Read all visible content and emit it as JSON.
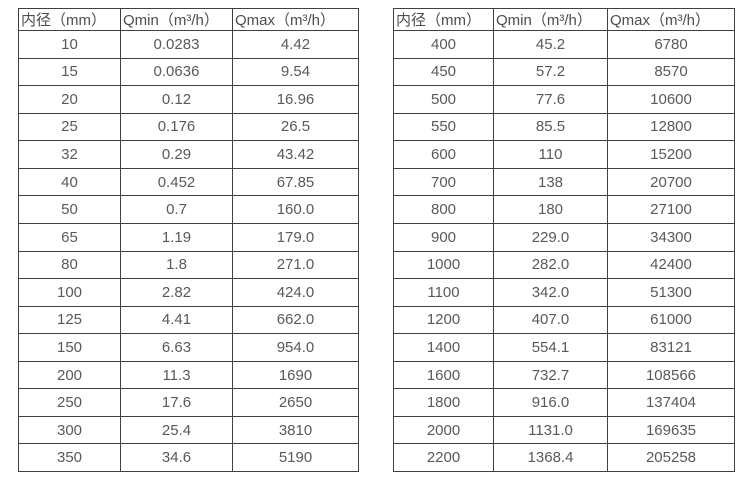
{
  "page": {
    "background": "#ffffff",
    "border_color": "#3f3f3f",
    "text_color": "#595959"
  },
  "chart_data": [
    {
      "type": "table",
      "title": "",
      "columns": [
        "内径（mm）",
        "Qmin（m³/h）",
        "Qmax（m³/h）"
      ],
      "rows": [
        [
          "10",
          "0.0283",
          "4.42"
        ],
        [
          "15",
          "0.0636",
          "9.54"
        ],
        [
          "20",
          "0.12",
          "16.96"
        ],
        [
          "25",
          "0.176",
          "26.5"
        ],
        [
          "32",
          "0.29",
          "43.42"
        ],
        [
          "40",
          "0.452",
          "67.85"
        ],
        [
          "50",
          "0.7",
          "160.0"
        ],
        [
          "65",
          "1.19",
          "179.0"
        ],
        [
          "80",
          "1.8",
          "271.0"
        ],
        [
          "100",
          "2.82",
          "424.0"
        ],
        [
          "125",
          "4.41",
          "662.0"
        ],
        [
          "150",
          "6.63",
          "954.0"
        ],
        [
          "200",
          "11.3",
          "1690"
        ],
        [
          "250",
          "17.6",
          "2650"
        ],
        [
          "300",
          "25.4",
          "3810"
        ],
        [
          "350",
          "34.6",
          "5190"
        ]
      ]
    },
    {
      "type": "table",
      "title": "",
      "columns": [
        "内径（mm）",
        "Qmin（m³/h）",
        "Qmax（m³/h）"
      ],
      "rows": [
        [
          "400",
          "45.2",
          "6780"
        ],
        [
          "450",
          "57.2",
          "8570"
        ],
        [
          "500",
          "77.6",
          "10600"
        ],
        [
          "550",
          "85.5",
          "12800"
        ],
        [
          "600",
          "110",
          "15200"
        ],
        [
          "700",
          "138",
          "20700"
        ],
        [
          "800",
          "180",
          "27100"
        ],
        [
          "900",
          "229.0",
          "34300"
        ],
        [
          "1000",
          "282.0",
          "42400"
        ],
        [
          "1100",
          "342.0",
          "51300"
        ],
        [
          "1200",
          "407.0",
          "61000"
        ],
        [
          "1400",
          "554.1",
          "83121"
        ],
        [
          "1600",
          "732.7",
          "108566"
        ],
        [
          "1800",
          "916.0",
          "137404"
        ],
        [
          "2000",
          "1131.0",
          "169635"
        ],
        [
          "2200",
          "1368.4",
          "205258"
        ]
      ]
    }
  ]
}
